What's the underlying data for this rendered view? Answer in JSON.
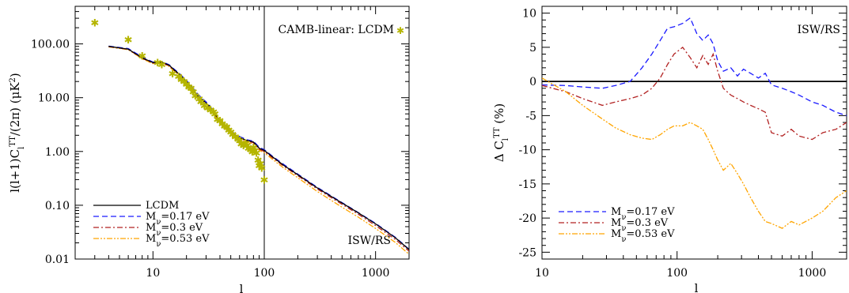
{
  "chart_data": [
    {
      "type": "line",
      "xscale": "log",
      "yscale": "log",
      "xlim": [
        2,
        2000
      ],
      "ylim": [
        0.01,
        500
      ],
      "xlabel": "l",
      "ylabel": "l(l+1)C_l^TT/(2π) (μK²)",
      "xticks": [
        {
          "v": 10,
          "label": "10"
        },
        {
          "v": 100,
          "label": "100"
        },
        {
          "v": 1000,
          "label": "1000"
        }
      ],
      "yticks": [
        {
          "v": 0.01,
          "label": "0.01"
        },
        {
          "v": 0.1,
          "label": "0.10"
        },
        {
          "v": 1,
          "label": "1.00"
        },
        {
          "v": 10,
          "label": "10.00"
        },
        {
          "v": 100,
          "label": "100.00"
        }
      ],
      "vline": 100,
      "annotations": {
        "top_right": "CAMB-linear: LCDM",
        "bottom_right": "ISW/RS"
      },
      "legend": "bottom-left",
      "series": [
        {
          "name": "LCDM",
          "color": "#000000",
          "dash": "",
          "x": [
            4,
            6,
            8,
            10,
            12,
            14,
            15,
            17,
            20,
            23,
            25,
            28,
            32,
            35,
            40,
            45,
            50,
            60,
            70,
            80,
            90,
            100,
            120,
            150,
            200,
            300,
            500,
            700,
            1000,
            1500,
            2000
          ],
          "y": [
            90,
            80,
            55,
            45,
            46,
            40,
            35,
            28,
            20,
            14,
            11,
            9,
            7,
            5.2,
            3.8,
            2.8,
            2.3,
            1.8,
            1.6,
            1.5,
            1.15,
            1.05,
            0.78,
            0.55,
            0.37,
            0.21,
            0.11,
            0.072,
            0.045,
            0.025,
            0.015
          ]
        },
        {
          "name": "M_ν=0.17 eV",
          "color": "#1a1aff",
          "dash": "7,4",
          "x": [
            4,
            6,
            8,
            10,
            12,
            14,
            15,
            17,
            20,
            23,
            25,
            28,
            32,
            35,
            40,
            45,
            50,
            60,
            70,
            80,
            90,
            100,
            120,
            150,
            200,
            300,
            500,
            700,
            1000,
            1500,
            2000
          ],
          "y": [
            91,
            82,
            57,
            46,
            47,
            41,
            36,
            29,
            21,
            15,
            12,
            9.5,
            7.4,
            5.5,
            4,
            3,
            2.4,
            1.9,
            1.65,
            1.55,
            1.2,
            1.08,
            0.8,
            0.57,
            0.38,
            0.215,
            0.112,
            0.073,
            0.046,
            0.0255,
            0.0152
          ]
        },
        {
          "name": "M_ν=0.3 eV",
          "color": "#b22222",
          "dash": "7,3,2,3",
          "x": [
            4,
            6,
            8,
            10,
            12,
            14,
            15,
            17,
            20,
            23,
            25,
            28,
            32,
            35,
            40,
            45,
            50,
            60,
            70,
            80,
            90,
            100,
            120,
            150,
            200,
            300,
            500,
            700,
            1000,
            1500,
            2000
          ],
          "y": [
            89,
            79,
            54,
            44,
            45,
            39,
            34,
            27.5,
            19.6,
            13.7,
            10.8,
            8.8,
            6.9,
            5.1,
            3.7,
            2.75,
            2.25,
            1.76,
            1.56,
            1.45,
            1.1,
            1.0,
            0.75,
            0.53,
            0.355,
            0.2,
            0.104,
            0.068,
            0.042,
            0.0233,
            0.014
          ]
        },
        {
          "name": "M_ν=0.53 eV",
          "color": "#ffa500",
          "dash": "7,2,2,2,2,2",
          "x": [
            4,
            6,
            8,
            10,
            12,
            14,
            15,
            17,
            20,
            23,
            25,
            28,
            32,
            35,
            40,
            45,
            50,
            60,
            70,
            80,
            90,
            100,
            120,
            150,
            200,
            300,
            500,
            700,
            1000,
            1500,
            2000
          ],
          "y": [
            88,
            78,
            53,
            43,
            44,
            38,
            33,
            27,
            19,
            13.3,
            10.5,
            8.5,
            6.6,
            4.9,
            3.55,
            2.62,
            2.15,
            1.68,
            1.48,
            1.38,
            1.05,
            0.95,
            0.7,
            0.49,
            0.325,
            0.18,
            0.092,
            0.06,
            0.037,
            0.0205,
            0.0123
          ]
        }
      ],
      "scatter": {
        "name": "CAMB-linear: LCDM",
        "color": "#b5b500",
        "x": [
          3,
          6,
          8,
          11,
          12,
          15,
          17,
          18,
          19,
          20,
          21,
          22,
          23,
          24,
          26,
          27,
          29,
          31,
          33,
          35,
          36,
          38,
          40,
          42,
          44,
          46,
          48,
          50,
          52,
          55,
          58,
          60,
          62,
          65,
          68,
          70,
          72,
          75,
          78,
          80,
          82,
          85,
          88,
          90,
          92,
          95,
          100
        ],
        "y": [
          250,
          120,
          60,
          45,
          42,
          28,
          25,
          22,
          20,
          18,
          16,
          15,
          13,
          11,
          9.5,
          8.5,
          7.2,
          6.5,
          6.0,
          5.5,
          5.0,
          4.0,
          3.8,
          3.3,
          3.0,
          2.9,
          2.5,
          2.3,
          2.1,
          1.9,
          1.7,
          1.6,
          1.4,
          1.3,
          1.45,
          1.3,
          1.15,
          1.1,
          1.0,
          1.2,
          1.05,
          0.95,
          0.7,
          0.55,
          0.6,
          0.5,
          0.3
        ]
      }
    },
    {
      "type": "line",
      "xscale": "log",
      "xlim": [
        10,
        1800
      ],
      "ylim": [
        -26,
        11
      ],
      "xlabel": "l",
      "ylabel": "Δ C_l^TT (%)",
      "xticks": [
        {
          "v": 10,
          "label": "10"
        },
        {
          "v": 100,
          "label": "100"
        },
        {
          "v": 1000,
          "label": "1000"
        }
      ],
      "yticks": [
        {
          "v": -25,
          "label": "-25"
        },
        {
          "v": -20,
          "label": "-20"
        },
        {
          "v": -15,
          "label": "-15"
        },
        {
          "v": -10,
          "label": "-10"
        },
        {
          "v": -5,
          "label": "-5"
        },
        {
          "v": 0,
          "label": "0"
        },
        {
          "v": 5,
          "label": "5"
        },
        {
          "v": 10,
          "label": "10"
        }
      ],
      "hline": 0,
      "annotations": {
        "top_right": "ISW/RS"
      },
      "legend": "bottom-left",
      "series": [
        {
          "name": "M_ν=0.17 eV",
          "color": "#1a1aff",
          "dash": "7,4",
          "x": [
            10,
            15,
            20,
            28,
            35,
            45,
            55,
            65,
            75,
            85,
            95,
            110,
            125,
            140,
            155,
            170,
            185,
            200,
            220,
            250,
            280,
            310,
            350,
            400,
            450,
            500,
            600,
            700,
            800,
            1000,
            1200,
            1500,
            1800
          ],
          "y": [
            -0.5,
            -0.6,
            -0.8,
            -1.0,
            -0.6,
            0.0,
            2.0,
            4.0,
            6.0,
            7.8,
            8.0,
            8.5,
            9.3,
            7.0,
            6.0,
            6.8,
            5.5,
            3.0,
            1.5,
            2.0,
            0.8,
            1.8,
            1.2,
            0.5,
            1.2,
            -0.5,
            -1.0,
            -1.5,
            -2.0,
            -3.0,
            -3.5,
            -4.5,
            -5.0
          ]
        },
        {
          "name": "M_ν=0.3 eV",
          "color": "#b22222",
          "dash": "7,3,2,3",
          "x": [
            10,
            15,
            20,
            28,
            35,
            45,
            55,
            65,
            75,
            85,
            95,
            110,
            125,
            140,
            155,
            170,
            185,
            200,
            220,
            250,
            280,
            310,
            350,
            400,
            450,
            500,
            600,
            700,
            800,
            1000,
            1200,
            1500,
            1800
          ],
          "y": [
            -0.6,
            -1.5,
            -2.5,
            -3.5,
            -3.0,
            -2.5,
            -2.0,
            -1.0,
            0.5,
            2.5,
            4.0,
            5.0,
            3.5,
            2.0,
            3.8,
            2.5,
            4.0,
            1.5,
            -1.0,
            -2.0,
            -2.5,
            -3.0,
            -3.5,
            -4.0,
            -4.5,
            -7.5,
            -8.0,
            -7.0,
            -8.0,
            -8.5,
            -7.5,
            -7.0,
            -6.0
          ]
        },
        {
          "name": "M_ν=0.53 eV",
          "color": "#ffa500",
          "dash": "7,2,2,2,2,2",
          "x": [
            10,
            15,
            20,
            28,
            35,
            45,
            55,
            65,
            75,
            85,
            95,
            110,
            125,
            140,
            155,
            170,
            185,
            200,
            220,
            250,
            280,
            310,
            350,
            400,
            450,
            500,
            600,
            700,
            800,
            1000,
            1200,
            1500,
            1800
          ],
          "y": [
            0.5,
            -1.5,
            -3.5,
            -5.5,
            -6.8,
            -7.8,
            -8.3,
            -8.5,
            -7.8,
            -7.0,
            -6.5,
            -6.5,
            -6.0,
            -6.5,
            -7.0,
            -8.5,
            -10.0,
            -11.5,
            -13.0,
            -12.0,
            -13.5,
            -15.0,
            -17.0,
            -19.0,
            -20.5,
            -20.8,
            -21.5,
            -20.5,
            -21.0,
            -20.0,
            -19.0,
            -17.0,
            -16.0
          ]
        }
      ]
    }
  ]
}
